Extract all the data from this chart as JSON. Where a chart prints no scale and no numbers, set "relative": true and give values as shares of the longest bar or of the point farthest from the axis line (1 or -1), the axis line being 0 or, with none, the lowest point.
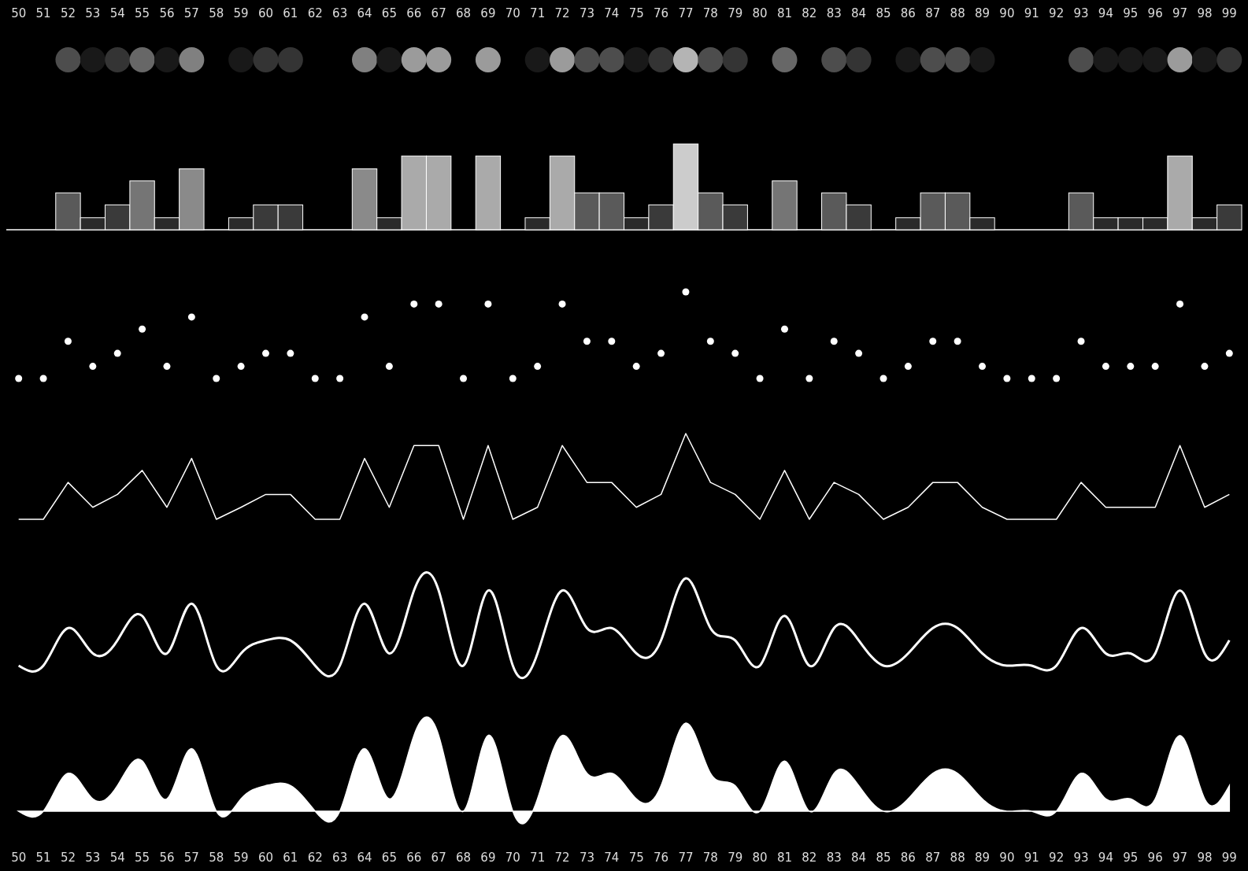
{
  "chart_data": [
    {
      "type": "bar",
      "relative": true,
      "tick_labels": "x",
      "categories": [
        "50",
        "51",
        "52",
        "53",
        "54",
        "55",
        "56",
        "57",
        "58",
        "59",
        "60",
        "61",
        "62",
        "63",
        "64",
        "65",
        "66",
        "67",
        "68",
        "69",
        "70",
        "71",
        "72",
        "73",
        "74",
        "75",
        "76",
        "77",
        "78",
        "79",
        "80",
        "81",
        "82",
        "83",
        "84",
        "85",
        "86",
        "87",
        "88",
        "89",
        "90",
        "91",
        "92",
        "93",
        "94",
        "95",
        "96",
        "97",
        "98",
        "99"
      ],
      "values": [
        0,
        0,
        0.43,
        0.14,
        0.29,
        0.57,
        0.14,
        0.71,
        0,
        0.14,
        0.29,
        0.29,
        0,
        0,
        0.71,
        0.14,
        0.86,
        0.86,
        0,
        0.86,
        0,
        0.14,
        0.86,
        0.43,
        0.43,
        0.14,
        0.29,
        1,
        0.43,
        0.29,
        0,
        0.57,
        0,
        0.43,
        0.29,
        0,
        0.14,
        0.43,
        0.43,
        0.14,
        0,
        0,
        0,
        0.43,
        0.14,
        0.14,
        0.14,
        0.86,
        0.14,
        0.29
      ],
      "colors": [
        "#000000",
        "#000000",
        "#5a5a5a",
        "#2a2a2a",
        "#3a3a3a",
        "#757575",
        "#2a2a2a",
        "#8a8a8a",
        "#000000",
        "#2a2a2a",
        "#3a3a3a",
        "#3a3a3a",
        "#000000",
        "#000000",
        "#8a8a8a",
        "#2a2a2a",
        "#aaaaaa",
        "#aaaaaa",
        "#000000",
        "#aaaaaa",
        "#000000",
        "#2a2a2a",
        "#aaaaaa",
        "#5a5a5a",
        "#5a5a5a",
        "#2a2a2a",
        "#3a3a3a",
        "#cccccc",
        "#5a5a5a",
        "#3a3a3a",
        "#000000",
        "#757575",
        "#000000",
        "#5a5a5a",
        "#3a3a3a",
        "#000000",
        "#2a2a2a",
        "#5a5a5a",
        "#5a5a5a",
        "#2a2a2a",
        "#000000",
        "#000000",
        "#000000",
        "#5a5a5a",
        "#2a2a2a",
        "#2a2a2a",
        "#2a2a2a",
        "#aaaaaa",
        "#2a2a2a",
        "#3a3a3a"
      ]
    },
    {
      "type": "scatter",
      "relative": true,
      "tick_labels": false,
      "marker": "circle",
      "categories": [
        "50",
        "51",
        "52",
        "53",
        "54",
        "55",
        "56",
        "57",
        "58",
        "59",
        "60",
        "61",
        "62",
        "63",
        "64",
        "65",
        "66",
        "67",
        "68",
        "69",
        "70",
        "71",
        "72",
        "73",
        "74",
        "75",
        "76",
        "77",
        "78",
        "79",
        "80",
        "81",
        "82",
        "83",
        "84",
        "85",
        "86",
        "87",
        "88",
        "89",
        "90",
        "91",
        "92",
        "93",
        "94",
        "95",
        "96",
        "97",
        "98",
        "99"
      ],
      "series": [
        {
          "color": "#ffffff",
          "values": [
            0,
            0,
            0.43,
            0.14,
            0.29,
            0.57,
            0.14,
            0.71,
            0,
            0.14,
            0.29,
            0.29,
            0,
            0,
            0.71,
            0.14,
            0.86,
            0.86,
            0,
            0.86,
            0,
            0.14,
            0.86,
            0.43,
            0.43,
            0.14,
            0.29,
            1,
            0.43,
            0.29,
            0,
            0.57,
            0,
            0.43,
            0.29,
            0,
            0.14,
            0.43,
            0.43,
            0.14,
            0,
            0,
            0,
            0.43,
            0.14,
            0.14,
            0.14,
            0.86,
            0.14,
            0.29
          ]
        }
      ]
    },
    {
      "type": "line",
      "relative": true,
      "tick_labels": false,
      "categories": [
        "50",
        "51",
        "52",
        "53",
        "54",
        "55",
        "56",
        "57",
        "58",
        "59",
        "60",
        "61",
        "62",
        "63",
        "64",
        "65",
        "66",
        "67",
        "68",
        "69",
        "70",
        "71",
        "72",
        "73",
        "74",
        "75",
        "76",
        "77",
        "78",
        "79",
        "80",
        "81",
        "82",
        "83",
        "84",
        "85",
        "86",
        "87",
        "88",
        "89",
        "90",
        "91",
        "92",
        "93",
        "94",
        "95",
        "96",
        "97",
        "98",
        "99"
      ],
      "series": [
        {
          "color": "#ffffff",
          "values": [
            0,
            0,
            0.43,
            0.14,
            0.29,
            0.57,
            0.14,
            0.71,
            0,
            0.14,
            0.29,
            0.29,
            0,
            0,
            0.71,
            0.14,
            0.86,
            0.86,
            0,
            0.86,
            0,
            0.14,
            0.86,
            0.43,
            0.43,
            0.14,
            0.29,
            1,
            0.43,
            0.29,
            0,
            0.57,
            0,
            0.43,
            0.29,
            0,
            0.14,
            0.43,
            0.43,
            0.14,
            0,
            0,
            0,
            0.43,
            0.14,
            0.14,
            0.14,
            0.86,
            0.14,
            0.29
          ]
        }
      ]
    },
    {
      "type": "line",
      "relative": true,
      "tick_labels": false,
      "categories": [
        "50",
        "51",
        "52",
        "53",
        "54",
        "55",
        "56",
        "57",
        "58",
        "59",
        "60",
        "61",
        "62",
        "63",
        "64",
        "65",
        "66",
        "67",
        "68",
        "69",
        "70",
        "71",
        "72",
        "73",
        "74",
        "75",
        "76",
        "77",
        "78",
        "79",
        "80",
        "81",
        "82",
        "83",
        "84",
        "85",
        "86",
        "87",
        "88",
        "89",
        "90",
        "91",
        "92",
        "93",
        "94",
        "95",
        "96",
        "97",
        "98",
        "99"
      ],
      "series": [
        {
          "color": "#ffffff",
          "values": [
            0,
            0,
            0.43,
            0.14,
            0.29,
            0.57,
            0.14,
            0.71,
            0,
            0.14,
            0.29,
            0.29,
            0,
            0,
            0.71,
            0.14,
            0.86,
            0.86,
            0,
            0.86,
            0,
            0.14,
            0.86,
            0.43,
            0.43,
            0.14,
            0.29,
            1,
            0.43,
            0.29,
            0,
            0.57,
            0,
            0.43,
            0.29,
            0,
            0.14,
            0.43,
            0.43,
            0.14,
            0,
            0,
            0,
            0.43,
            0.14,
            0.14,
            0.14,
            0.86,
            0.14,
            0.29
          ]
        }
      ]
    },
    {
      "type": "area",
      "relative": true,
      "tick_labels": "x",
      "categories": [
        "50",
        "51",
        "52",
        "53",
        "54",
        "55",
        "56",
        "57",
        "58",
        "59",
        "60",
        "61",
        "62",
        "63",
        "64",
        "65",
        "66",
        "67",
        "68",
        "69",
        "70",
        "71",
        "72",
        "73",
        "74",
        "75",
        "76",
        "77",
        "78",
        "79",
        "80",
        "81",
        "82",
        "83",
        "84",
        "85",
        "86",
        "87",
        "88",
        "89",
        "90",
        "91",
        "92",
        "93",
        "94",
        "95",
        "96",
        "97",
        "98",
        "99"
      ],
      "series": [
        {
          "color": "#ffffff",
          "values": [
            0,
            0,
            0.43,
            0.14,
            0.29,
            0.57,
            0.14,
            0.71,
            0,
            0.14,
            0.29,
            0.29,
            0,
            0,
            0.71,
            0.14,
            0.86,
            0.86,
            0,
            0.86,
            0,
            0.14,
            0.86,
            0.43,
            0.43,
            0.14,
            0.29,
            1,
            0.43,
            0.29,
            0,
            0.57,
            0,
            0.43,
            0.29,
            0,
            0.14,
            0.43,
            0.43,
            0.14,
            0,
            0,
            0,
            0.43,
            0.14,
            0.14,
            0.14,
            0.86,
            0.14,
            0.29
          ]
        }
      ]
    }
  ]
}
